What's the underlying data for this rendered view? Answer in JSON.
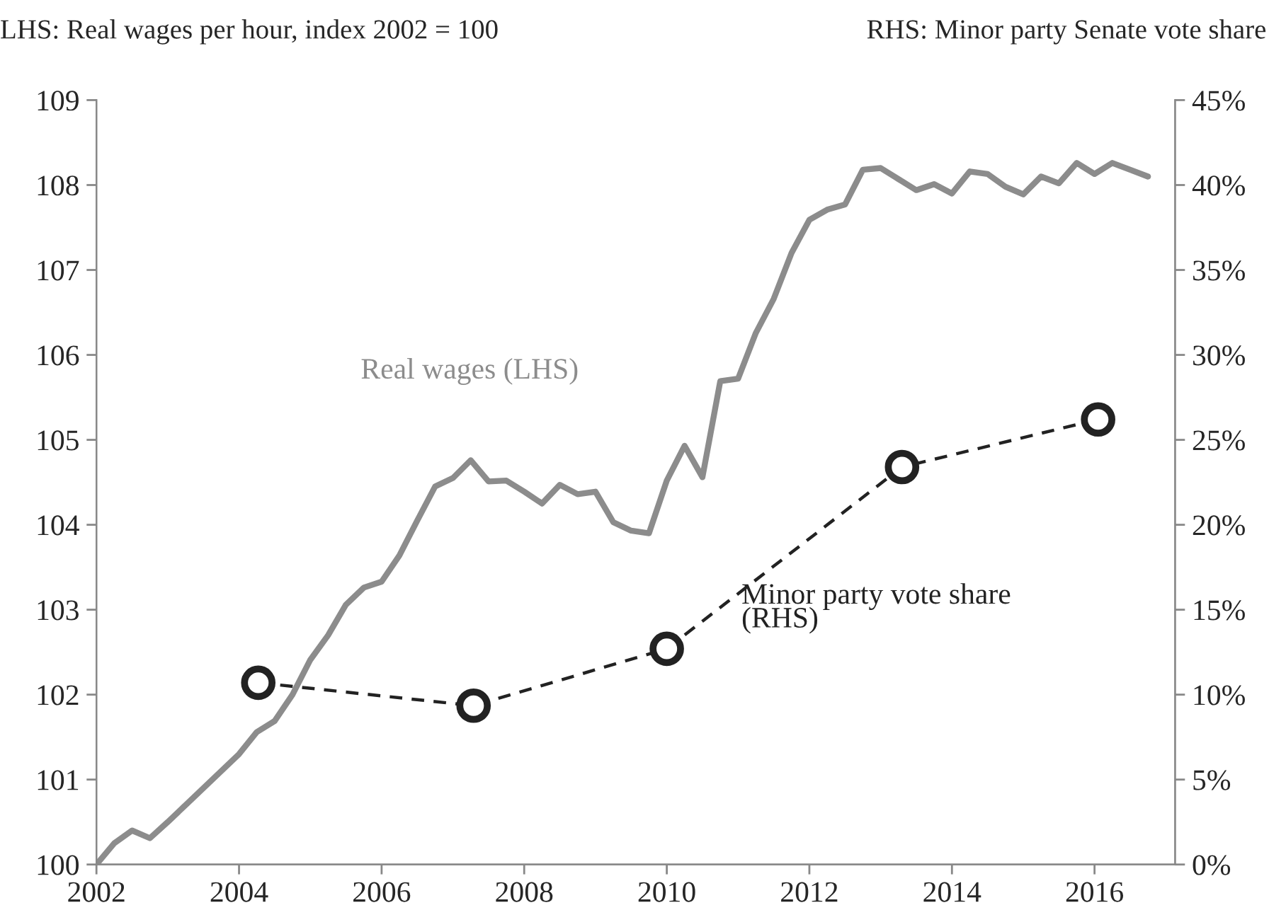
{
  "chart_data": {
    "type": "line",
    "ylabel": "LHS: Real wages per hour, index 2002 = 100",
    "y2label": "RHS: Minor party Senate vote share",
    "xlim": [
      2002,
      2017.13
    ],
    "xticks": [
      2002,
      2004,
      2006,
      2008,
      2010,
      2012,
      2014,
      2016
    ],
    "ylim": [
      100,
      109
    ],
    "yticks": [
      100,
      101,
      102,
      103,
      104,
      105,
      106,
      107,
      108,
      109
    ],
    "y2lim": [
      0,
      45
    ],
    "y2ticks": [
      {
        "value": 0,
        "label": "0%"
      },
      {
        "value": 5,
        "label": "5%"
      },
      {
        "value": 10,
        "label": "10%"
      },
      {
        "value": 15,
        "label": "15%"
      },
      {
        "value": 20,
        "label": "20%"
      },
      {
        "value": 25,
        "label": "25%"
      },
      {
        "value": 30,
        "label": "30%"
      },
      {
        "value": 35,
        "label": "35%"
      },
      {
        "value": 40,
        "label": "40%"
      },
      {
        "value": 45,
        "label": "45%"
      }
    ],
    "grid": false,
    "legend": false,
    "series": [
      {
        "name": "Real wages (LHS)",
        "color": "#8c8c8c",
        "line_style": "solid",
        "marker": "none",
        "x": [
          2002.0,
          2002.25,
          2002.5,
          2002.75,
          2003.0,
          2003.25,
          2003.5,
          2003.75,
          2004.0,
          2004.25,
          2004.5,
          2004.75,
          2005.0,
          2005.25,
          2005.5,
          2005.75,
          2006.0,
          2006.25,
          2006.5,
          2006.75,
          2007.0,
          2007.25,
          2007.5,
          2007.75,
          2008.0,
          2008.25,
          2008.5,
          2008.75,
          2009.0,
          2009.25,
          2009.5,
          2009.75,
          2010.0,
          2010.25,
          2010.5,
          2010.75,
          2011.0,
          2011.25,
          2011.5,
          2011.75,
          2012.0,
          2012.25,
          2012.5,
          2012.75,
          2013.0,
          2013.25,
          2013.5,
          2013.75,
          2014.0,
          2014.25,
          2014.5,
          2014.75,
          2015.0,
          2015.25,
          2015.5,
          2015.75,
          2016.0,
          2016.25,
          2016.5,
          2016.75
        ],
        "values": [
          100.0,
          100.25,
          100.4,
          100.31,
          100.5,
          100.7,
          100.9,
          101.1,
          101.3,
          101.56,
          101.69,
          102.0,
          102.41,
          102.7,
          103.06,
          103.26,
          103.33,
          103.64,
          104.05,
          104.45,
          104.55,
          104.76,
          104.51,
          104.52,
          104.39,
          104.25,
          104.47,
          104.36,
          104.39,
          104.03,
          103.93,
          103.9,
          104.52,
          104.93,
          104.56,
          105.69,
          105.72,
          106.26,
          106.66,
          107.2,
          107.59,
          107.71,
          107.77,
          108.18,
          108.2,
          108.07,
          107.94,
          108.01,
          107.9,
          108.16,
          108.13,
          107.98,
          107.89,
          108.1,
          108.02,
          108.26,
          108.13,
          108.26,
          108.18,
          108.1
        ]
      },
      {
        "name": "Minor party vote share\n(RHS)",
        "color": "#222222",
        "axis": "y2",
        "line_style": "dashed",
        "marker": "circle",
        "x": [
          2004.27,
          2007.29,
          2010.0,
          2013.3,
          2016.05
        ],
        "values": [
          10.7,
          9.35,
          12.7,
          23.4,
          26.2
        ]
      }
    ]
  }
}
